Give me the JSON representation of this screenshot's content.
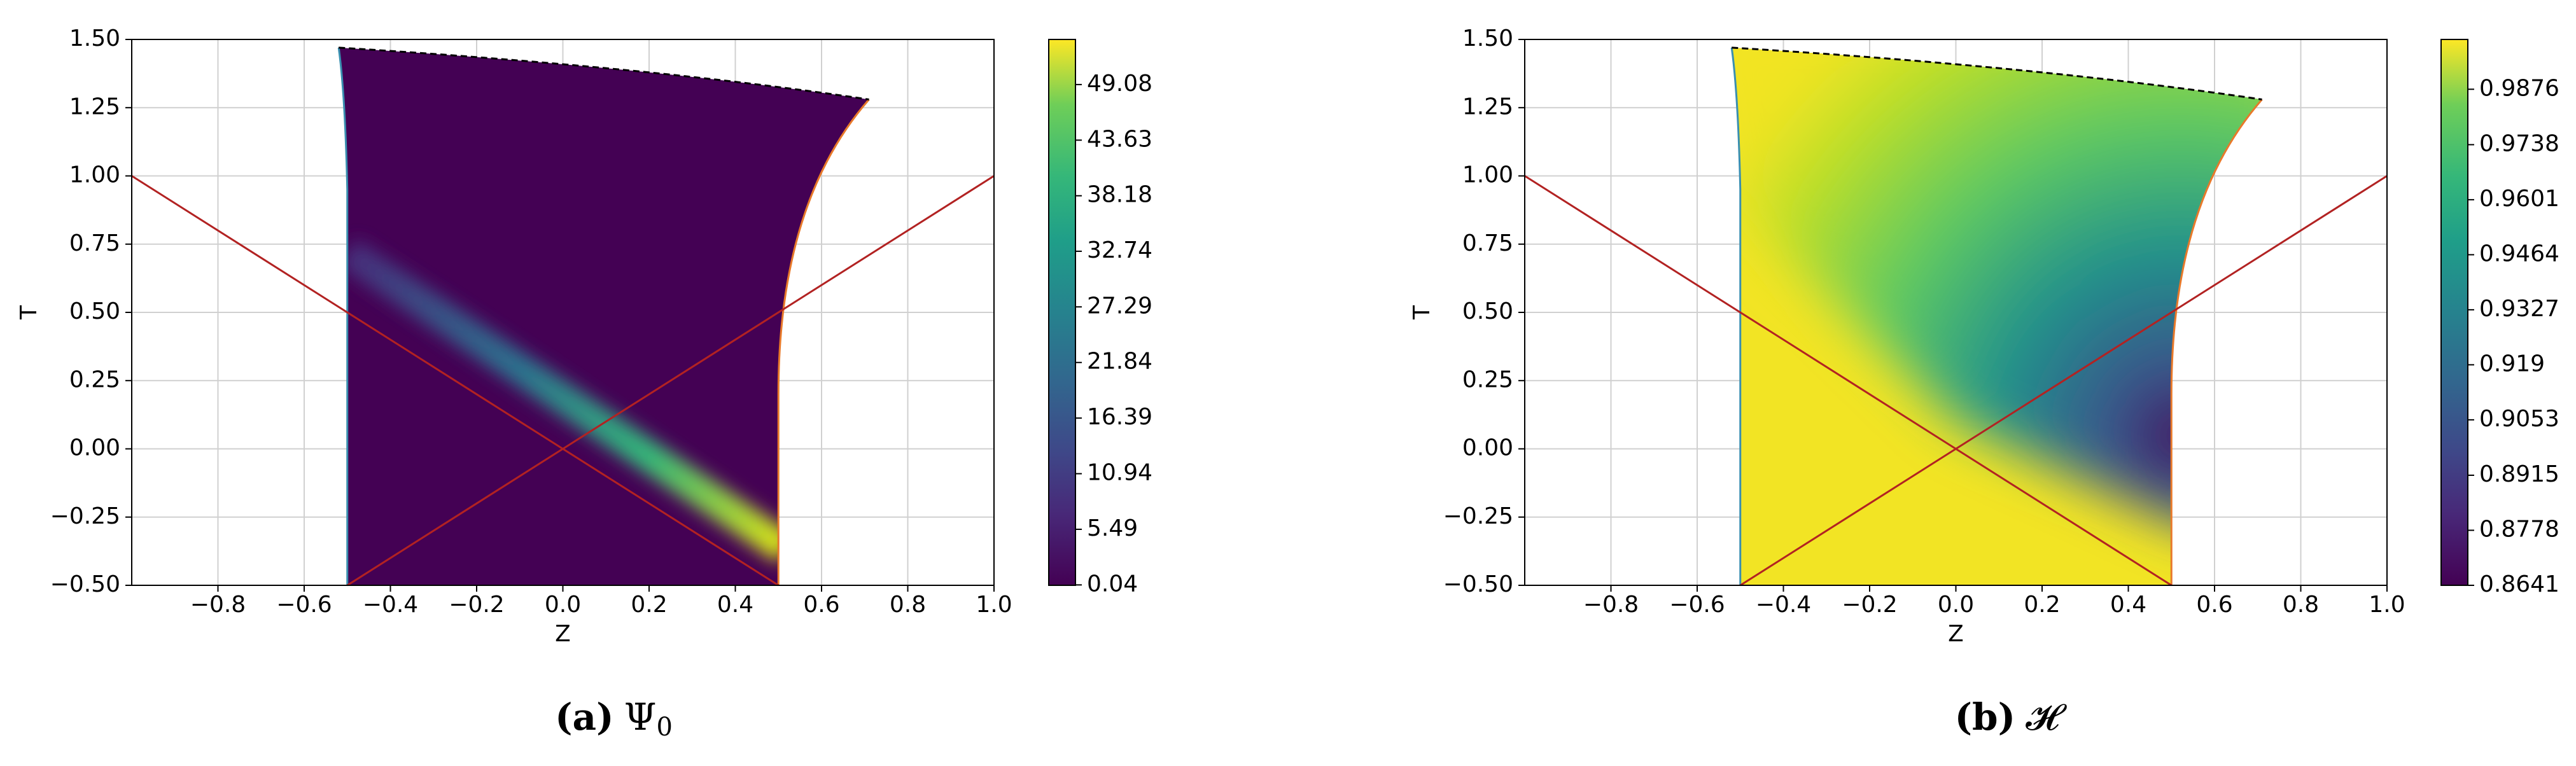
{
  "chart_data": [
    {
      "type": "heatmap",
      "xlabel": "Z",
      "ylabel": "T",
      "xlim": [
        -1.0,
        1.0
      ],
      "ylim": [
        -0.5,
        1.5
      ],
      "xticks": [
        {
          "value": -0.8,
          "label": "−0.8"
        },
        {
          "value": -0.6,
          "label": "−0.6"
        },
        {
          "value": -0.4,
          "label": "−0.4"
        },
        {
          "value": -0.2,
          "label": "−0.2"
        },
        {
          "value": 0.0,
          "label": "0.0"
        },
        0.2,
        0.4,
        0.6,
        0.8,
        {
          "value": 1.0,
          "label": "1.0"
        }
      ],
      "yticks": [
        {
          "value": -0.5,
          "label": "−0.50"
        },
        {
          "value": -0.25,
          "label": "−0.25"
        },
        {
          "value": 0.0,
          "label": "0.00"
        },
        0.25,
        {
          "value": 0.5,
          "label": "0.50"
        },
        0.75,
        {
          "value": 1.0,
          "label": "1.00"
        },
        1.25,
        {
          "value": 1.5,
          "label": "1.50"
        }
      ],
      "grid": true,
      "clim": [
        0.0,
        53.5
      ],
      "colorbar_ticks": [
        0.04,
        5.49,
        10.94,
        16.39,
        21.84,
        27.29,
        32.74,
        38.18,
        43.63,
        49.08
      ],
      "caption_label": "(a)",
      "caption_symbol": "Ψ",
      "caption_subscript": "0"
    },
    {
      "type": "heatmap",
      "xlabel": "Z",
      "ylabel": "T",
      "xlim": [
        -1.0,
        1.0
      ],
      "ylim": [
        -0.5,
        1.5
      ],
      "xticks": [
        {
          "value": -0.8,
          "label": "−0.8"
        },
        {
          "value": -0.6,
          "label": "−0.6"
        },
        {
          "value": -0.4,
          "label": "−0.4"
        },
        {
          "value": -0.2,
          "label": "−0.2"
        },
        {
          "value": 0.0,
          "label": "0.0"
        },
        0.2,
        0.4,
        0.6,
        0.8,
        {
          "value": 1.0,
          "label": "1.0"
        }
      ],
      "yticks": [
        {
          "value": -0.5,
          "label": "−0.50"
        },
        {
          "value": -0.25,
          "label": "−0.25"
        },
        {
          "value": 0.0,
          "label": "0.00"
        },
        0.25,
        {
          "value": 0.5,
          "label": "0.50"
        },
        0.75,
        {
          "value": 1.0,
          "label": "1.00"
        },
        1.25,
        {
          "value": 1.5,
          "label": "1.50"
        }
      ],
      "grid": true,
      "clim": [
        0.8641,
        1.0
      ],
      "colorbar_ticks": [
        0.8641,
        0.8778,
        0.8915,
        0.9053,
        0.919,
        0.9327,
        0.9464,
        0.9601,
        0.9738,
        0.9876
      ],
      "caption_label": "(b)",
      "caption_symbol": "𝓗",
      "caption_subscript": ""
    }
  ]
}
